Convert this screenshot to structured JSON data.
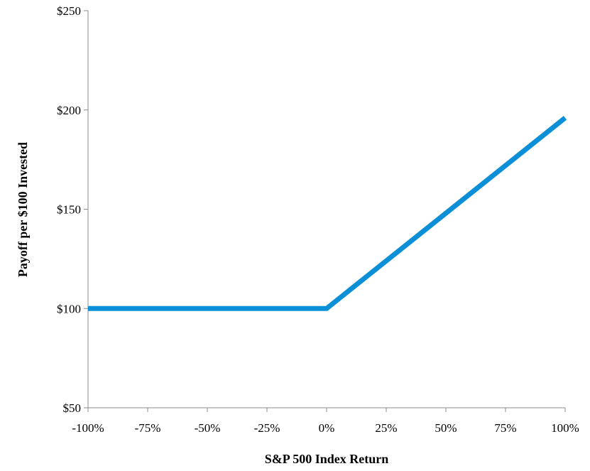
{
  "chart_data": {
    "type": "line",
    "xlabel": "S&P 500 Index Return",
    "ylabel": "Payoff per $100 Invested",
    "xlim": [
      -100,
      100
    ],
    "ylim": [
      50,
      250
    ],
    "x_ticks": [
      -100,
      -75,
      -50,
      -25,
      0,
      25,
      50,
      75,
      100
    ],
    "x_tick_labels": [
      "-100%",
      "-75%",
      "-50%",
      "-25%",
      "0%",
      "25%",
      "50%",
      "75%",
      "100%"
    ],
    "y_ticks": [
      50,
      100,
      150,
      200,
      250
    ],
    "y_tick_labels": [
      "$50",
      "$100",
      "$150",
      "$200",
      "$250"
    ],
    "grid": false,
    "legend": "none",
    "series": [
      {
        "color": "#0b8fd6",
        "x": [
          -100,
          0,
          100
        ],
        "y": [
          100,
          100,
          196
        ]
      }
    ]
  }
}
